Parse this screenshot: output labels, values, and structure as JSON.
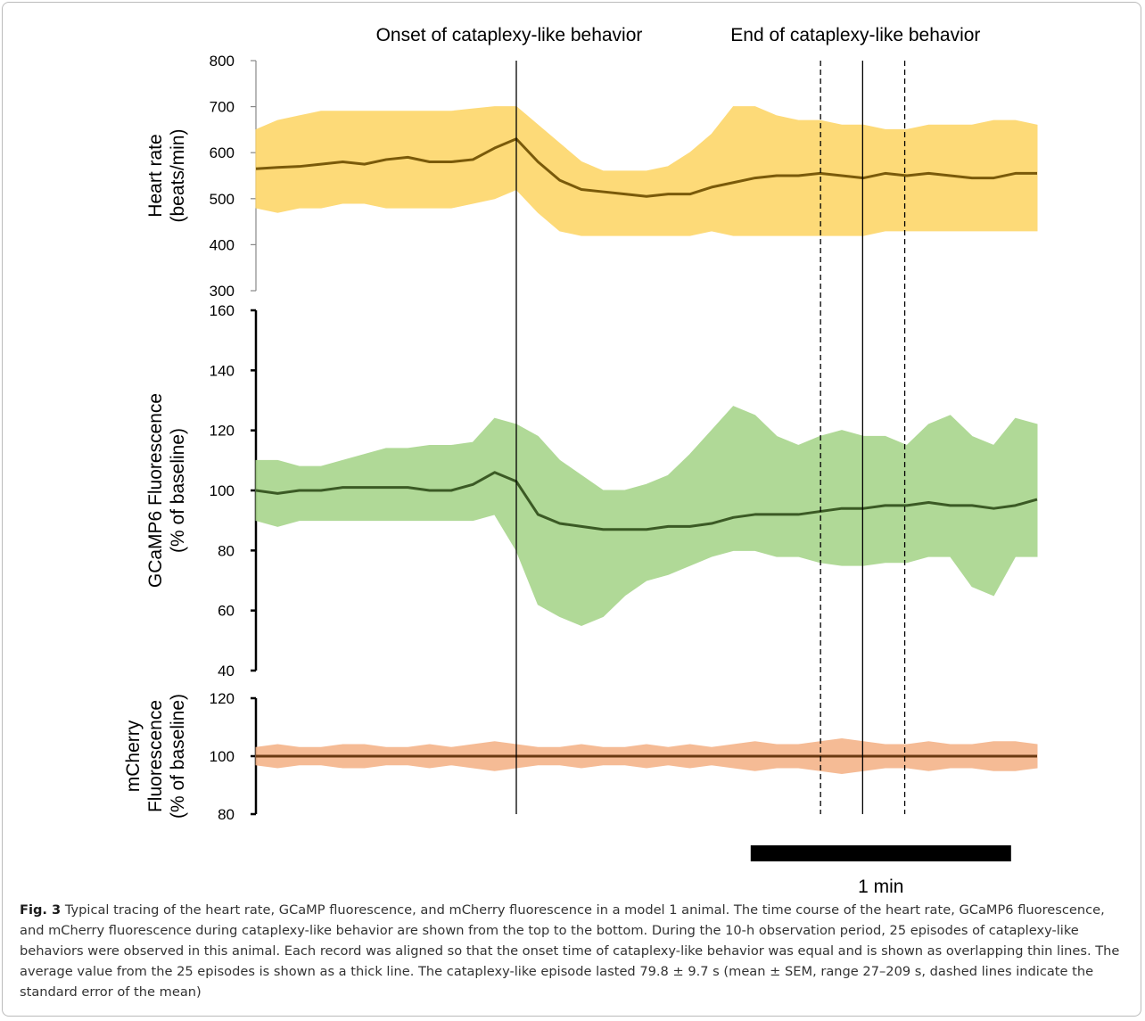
{
  "chart_data": [
    {
      "type": "line",
      "ylabel": [
        "Heart rate",
        "(beats/min)"
      ],
      "annotations": [
        {
          "text": "Onset of cataplexy-like behavior",
          "x": 60
        },
        {
          "text": "End of cataplexy-like behavior",
          "x": 139.8
        }
      ],
      "vlines": [
        {
          "x": 60,
          "dash": false
        },
        {
          "x": 130.1,
          "dash": true
        },
        {
          "x": 139.8,
          "dash": false
        },
        {
          "x": 149.5,
          "dash": true
        }
      ],
      "xlim": [
        0,
        180
      ],
      "x": [
        0,
        5,
        10,
        15,
        20,
        25,
        30,
        35,
        40,
        45,
        50,
        55,
        60,
        65,
        70,
        75,
        80,
        85,
        90,
        95,
        100,
        105,
        110,
        115,
        120,
        125,
        130,
        135,
        140,
        145,
        150,
        155,
        160,
        165,
        170,
        175,
        180
      ],
      "ylim": [
        300,
        800
      ],
      "yticks": [
        300,
        400,
        500,
        600,
        700,
        800
      ],
      "series": [
        {
          "color": "#fdd66a",
          "values": [
            650,
            670,
            680,
            690,
            690,
            690,
            690,
            690,
            690,
            690,
            695,
            700,
            700,
            660,
            620,
            580,
            560,
            560,
            560,
            570,
            600,
            640,
            700,
            700,
            680,
            670,
            670,
            660,
            660,
            650,
            650,
            660,
            660,
            660,
            670,
            670,
            660
          ],
          "lower": [
            480,
            470,
            480,
            480,
            490,
            490,
            480,
            480,
            480,
            480,
            490,
            500,
            520,
            470,
            430,
            420,
            420,
            420,
            420,
            420,
            420,
            430,
            420,
            420,
            420,
            420,
            420,
            420,
            420,
            430,
            430,
            430,
            430,
            430,
            430,
            430,
            430
          ]
        },
        {
          "color": "#7a5a0a",
          "values": [
            565,
            568,
            570,
            575,
            580,
            575,
            585,
            590,
            580,
            580,
            585,
            610,
            630,
            580,
            540,
            520,
            515,
            510,
            505,
            510,
            510,
            525,
            535,
            545,
            550,
            550,
            555,
            550,
            545,
            555,
            550,
            555,
            550,
            545,
            545,
            555,
            555
          ]
        }
      ]
    },
    {
      "type": "line",
      "ylabel": [
        "GCaMP6 Fluorescence",
        "(% of baseline)"
      ],
      "xlim": [
        0,
        180
      ],
      "x": [
        0,
        5,
        10,
        15,
        20,
        25,
        30,
        35,
        40,
        45,
        50,
        55,
        60,
        65,
        70,
        75,
        80,
        85,
        90,
        95,
        100,
        105,
        110,
        115,
        120,
        125,
        130,
        135,
        140,
        145,
        150,
        155,
        160,
        165,
        170,
        175,
        180
      ],
      "ylim": [
        40,
        160
      ],
      "yticks": [
        40,
        60,
        80,
        100,
        120,
        140,
        160
      ],
      "series": [
        {
          "color": "#a8d58c",
          "values": [
            110,
            110,
            108,
            108,
            110,
            112,
            114,
            114,
            115,
            115,
            116,
            124,
            122,
            118,
            110,
            105,
            100,
            100,
            102,
            105,
            112,
            120,
            128,
            125,
            118,
            115,
            118,
            120,
            118,
            118,
            115,
            122,
            125,
            118,
            115,
            124,
            122
          ],
          "lower": [
            90,
            88,
            90,
            90,
            90,
            90,
            90,
            90,
            90,
            90,
            90,
            92,
            80,
            62,
            58,
            55,
            58,
            65,
            70,
            72,
            75,
            78,
            80,
            80,
            78,
            78,
            76,
            75,
            75,
            76,
            76,
            78,
            78,
            68,
            65,
            78,
            78
          ]
        },
        {
          "color": "#3b5a25",
          "values": [
            100,
            99,
            100,
            100,
            101,
            101,
            101,
            101,
            100,
            100,
            102,
            106,
            103,
            92,
            89,
            88,
            87,
            87,
            87,
            88,
            88,
            89,
            91,
            92,
            92,
            92,
            93,
            94,
            94,
            95,
            95,
            96,
            95,
            95,
            94,
            95,
            97
          ]
        }
      ]
    },
    {
      "type": "line",
      "ylabel": [
        "mCherry",
        "Fluorescence",
        "(% of baseline)"
      ],
      "xlim": [
        0,
        180
      ],
      "x": [
        0,
        5,
        10,
        15,
        20,
        25,
        30,
        35,
        40,
        45,
        50,
        55,
        60,
        65,
        70,
        75,
        80,
        85,
        90,
        95,
        100,
        105,
        110,
        115,
        120,
        125,
        130,
        135,
        140,
        145,
        150,
        155,
        160,
        165,
        170,
        175,
        180
      ],
      "ylim": [
        80,
        120
      ],
      "yticks": [
        80,
        100,
        120
      ],
      "scalebar": {
        "x": 114,
        "length": 60,
        "label": "1 min"
      },
      "series": [
        {
          "color": "#f4b48a",
          "values": [
            103,
            104,
            103,
            103,
            104,
            104,
            103,
            103,
            104,
            103,
            104,
            105,
            104,
            103,
            103,
            104,
            103,
            103,
            104,
            103,
            104,
            103,
            104,
            105,
            104,
            104,
            105,
            106,
            105,
            104,
            104,
            105,
            104,
            104,
            105,
            105,
            104
          ],
          "lower": [
            97,
            96,
            97,
            97,
            96,
            96,
            97,
            97,
            96,
            97,
            96,
            95,
            96,
            97,
            97,
            96,
            97,
            97,
            96,
            97,
            96,
            97,
            96,
            95,
            96,
            96,
            95,
            94,
            95,
            96,
            96,
            95,
            96,
            96,
            95,
            95,
            96
          ]
        },
        {
          "color": "#6b3a12",
          "values": [
            100,
            100,
            100,
            100,
            100,
            100,
            100,
            100,
            100,
            100,
            100,
            100,
            100,
            100,
            100,
            100,
            100,
            100,
            100,
            100,
            100,
            100,
            100,
            100,
            100,
            100,
            100,
            100,
            100,
            100,
            100,
            100,
            100,
            100,
            100,
            100,
            100
          ]
        }
      ]
    }
  ],
  "caption": {
    "label": "Fig. 3",
    "text": "Typical tracing of the heart rate, GCaMP fluorescence, and mCherry fluorescence in a model 1 animal. The time course of the heart rate, GCaMP6 fluorescence, and mCherry fluorescence during cataplexy-like behavior are shown from the top to the bottom. During the 10-h observation period, 25 episodes of cataplexy-like behaviors were observed in this animal. Each record was aligned so that the onset time of cataplexy-like behavior was equal and is shown as overlapping thin lines. The average value from the 25 episodes is shown as a thick line. The cataplexy-like episode lasted 79.8 ± 9.7 s (mean ± SEM, range 27–209 s, dashed lines indicate the standard error of the mean)"
  }
}
